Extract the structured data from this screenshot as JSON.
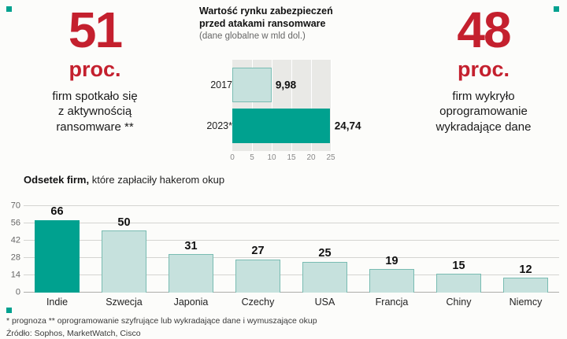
{
  "colors": {
    "red": "#c4202e",
    "teal_dark": "#00a18f",
    "teal_light": "#c6e1dd"
  },
  "stats": {
    "left": {
      "value": "51",
      "unit": "proc.",
      "desc_lines": [
        "firm spotkało się",
        "z aktywnością",
        "ransomware **"
      ]
    },
    "right": {
      "value": "48",
      "unit": "proc.",
      "desc_lines": [
        "firm wykryło",
        "oprogramowanie",
        "wykradające dane"
      ]
    }
  },
  "chart_data": [
    {
      "type": "bar",
      "orientation": "horizontal",
      "title": "Wartość rynku zabezpieczeń przed atakami ransomware",
      "subtitle": "(dane globalne w mld dol.)",
      "categories": [
        "2017",
        "2023*"
      ],
      "values": [
        9.98,
        24.74
      ],
      "value_labels": [
        "9,98",
        "24,74"
      ],
      "xlim": [
        0,
        25
      ],
      "xticks": [
        0,
        5,
        10,
        15,
        20,
        25
      ],
      "grid": "vertical-white-on-gray-panel",
      "legend": "none"
    },
    {
      "type": "bar",
      "orientation": "vertical",
      "title_bold": "Odsetek firm,",
      "title_rest": " które zapłaciły hakerom okup",
      "categories": [
        "Indie",
        "Szwecja",
        "Japonia",
        "Czechy",
        "USA",
        "Francja",
        "Chiny",
        "Niemcy"
      ],
      "values": [
        66,
        50,
        31,
        27,
        25,
        19,
        15,
        12
      ],
      "ylim": [
        0,
        70
      ],
      "yticks": [
        0,
        14,
        28,
        42,
        56,
        70
      ],
      "highlight_index": 0,
      "grid": "horizontal",
      "legend": "none"
    }
  ],
  "footnotes": {
    "notes": "* prognoza ** oprogramowanie szyfrujące lub wykradające dane i wymuszające okup",
    "source": "Źródło: Sophos, MarketWatch, Cisco"
  }
}
